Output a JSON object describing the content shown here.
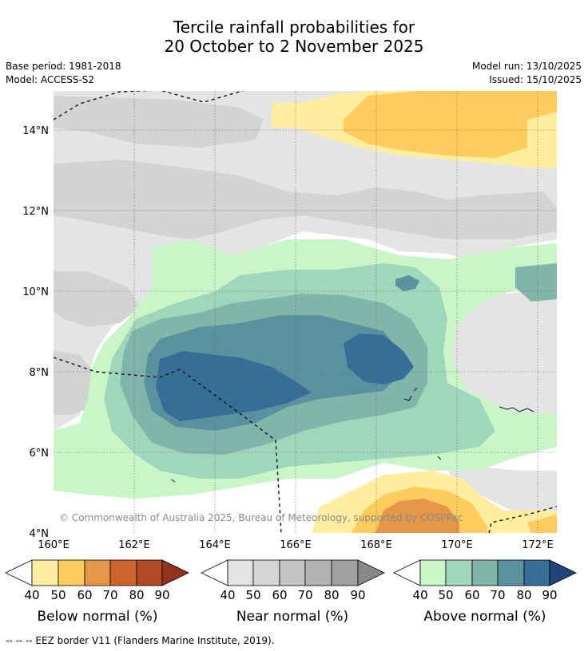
{
  "title": {
    "line1": "Tercile rainfall probabilities for",
    "line2": "20 October to 2 November 2025"
  },
  "meta": {
    "base_period": "Base period: 1981-2018",
    "model": "Model: ACCESS-S2",
    "model_run": "Model run: 13/10/2025",
    "issued": "Issued: 15/10/2025"
  },
  "axes": {
    "lon_labels": [
      "160°E",
      "162°E",
      "164°E",
      "166°E",
      "168°E",
      "170°E",
      "172°E"
    ],
    "lat_labels": [
      "14°N",
      "12°N",
      "10°N",
      "8°N",
      "6°N",
      "4°N"
    ]
  },
  "watermark": "© Commonwealth of Australia 2025, Bureau of Meteorology, supported by COSPPac",
  "legends": [
    {
      "title": "Below normal (%)",
      "ticks": [
        "40",
        "50",
        "60",
        "70",
        "80",
        "90"
      ],
      "colors": [
        "#ffffff",
        "#ffeda0",
        "#fecc5c",
        "#e39747",
        "#d0622f",
        "#b34a27",
        "#93321f"
      ]
    },
    {
      "title": "Near normal (%)",
      "ticks": [
        "40",
        "50",
        "60",
        "70",
        "80",
        "90"
      ],
      "colors": [
        "#ffffff",
        "#e3e3e3",
        "#d4d4d4",
        "#c4c4c4",
        "#b3b3b3",
        "#a0a0a0",
        "#888888"
      ]
    },
    {
      "title": "Above normal (%)",
      "ticks": [
        "40",
        "50",
        "60",
        "70",
        "80",
        "90"
      ],
      "colors": [
        "#ffffff",
        "#c9f5c9",
        "#a0d6bc",
        "#81b5aa",
        "#5a91a0",
        "#376e96",
        "#21447a"
      ]
    }
  ],
  "footer": "--  --  -- EEZ border V11 (Flanders Marine Institute, 2019)."
}
